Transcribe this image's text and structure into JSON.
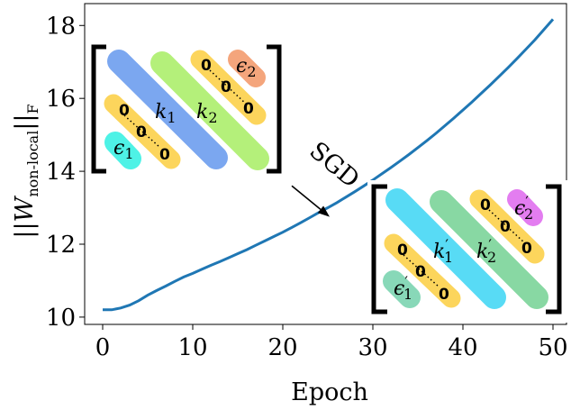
{
  "chart_data": {
    "type": "line",
    "xlabel": "Epoch",
    "ylabel": "||W_non-local||_F",
    "ylabel_parts": {
      "norm_open": "||",
      "base": "W",
      "sub": "non-local",
      "norm_close": "||",
      "norm_sub": "F"
    },
    "xlim": [
      -2,
      51.5
    ],
    "ylim": [
      9.8,
      18.6
    ],
    "xticks": [
      0,
      10,
      20,
      30,
      40,
      50
    ],
    "xtick_labels": [
      "0",
      "10",
      "20",
      "30",
      "40",
      "50"
    ],
    "yticks": [
      10,
      12,
      14,
      16,
      18
    ],
    "ytick_labels": [
      "10",
      "12",
      "14",
      "16",
      "18"
    ],
    "grid": false,
    "series": [
      {
        "color": "#1f77b4",
        "x": [
          0,
          1,
          2,
          3,
          4,
          5,
          6,
          7,
          8,
          9,
          10,
          11,
          12,
          13,
          14,
          15,
          16,
          17,
          18,
          19,
          20,
          21,
          22,
          23,
          24,
          25,
          26,
          27,
          28,
          29,
          30,
          31,
          32,
          33,
          34,
          35,
          36,
          37,
          38,
          39,
          40,
          41,
          42,
          43,
          44,
          45,
          46,
          47,
          48,
          49,
          50
        ],
        "values": [
          10.2,
          10.2,
          10.25,
          10.33,
          10.45,
          10.6,
          10.73,
          10.85,
          10.98,
          11.1,
          11.2,
          11.31,
          11.42,
          11.52,
          11.63,
          11.74,
          11.85,
          11.97,
          12.09,
          12.21,
          12.33,
          12.46,
          12.59,
          12.73,
          12.87,
          13.0,
          13.14,
          13.29,
          13.44,
          13.6,
          13.76,
          13.93,
          14.1,
          14.28,
          14.46,
          14.65,
          14.84,
          15.04,
          15.25,
          15.46,
          15.68,
          15.9,
          16.13,
          16.36,
          16.6,
          16.84,
          17.09,
          17.35,
          17.61,
          17.89,
          18.17
        ]
      }
    ],
    "annotation": {
      "text": "SGD",
      "arrow_tail": [
        21.0,
        13.6
      ],
      "arrow_head": [
        25.2,
        12.75
      ]
    }
  },
  "insets": {
    "initial": {
      "k_main": "k",
      "k_main_sub": "1",
      "k_second": "k",
      "k_second_sub": "2",
      "eps_bottom": "ϵ",
      "eps_bottom_sub": "1",
      "eps_top": "ϵ",
      "eps_top_sub": "2",
      "zero": "0",
      "colors": {
        "k_main": "#7ba7f0",
        "k_second": "#b4f07a",
        "eps_bottom": "#4ef2e6",
        "eps_top": "#f4a57c",
        "zero_bar": "#fcd55c"
      }
    },
    "trained": {
      "k_main": "k",
      "k_main_sub": "1",
      "k_main_prime": "′",
      "k_second": "k",
      "k_second_sub": "2",
      "k_second_prime": "′",
      "eps_bottom": "ϵ",
      "eps_bottom_sub": "1",
      "eps_bottom_prime": "′",
      "eps_top": "ϵ",
      "eps_top_sub": "2",
      "eps_top_prime": "′",
      "zero": "0",
      "colors": {
        "k_main": "#58dbf5",
        "k_second": "#88d8a3",
        "eps_bottom": "#88d8b8",
        "eps_top": "#e37df0",
        "zero_bar": "#fcd55c"
      }
    }
  }
}
